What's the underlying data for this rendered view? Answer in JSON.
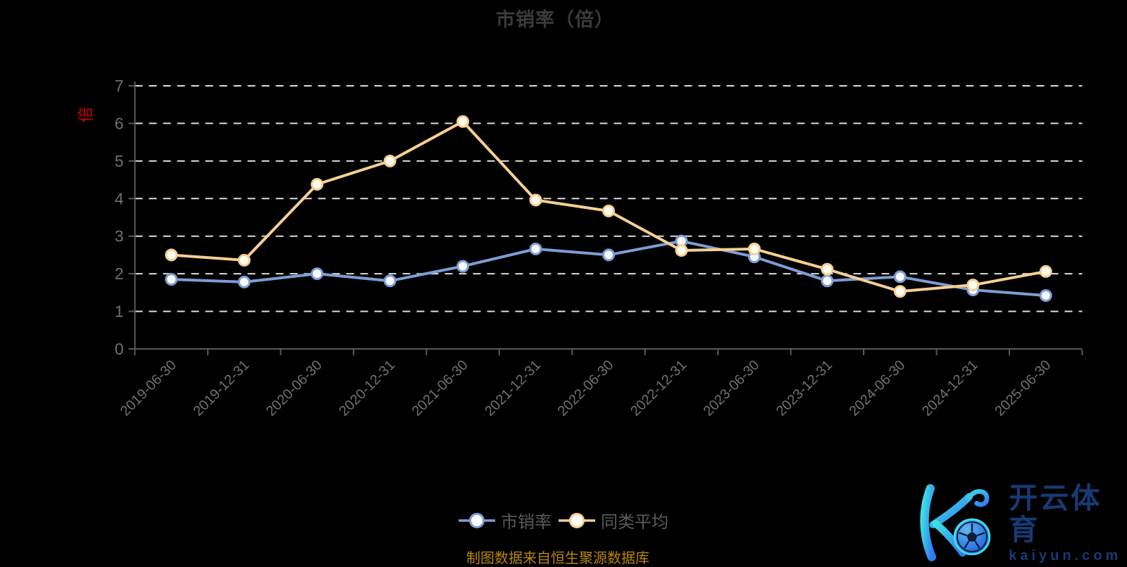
{
  "title": "市销率（倍）",
  "y_axis_unit": "倍",
  "source_note": "制图数据来自恒生聚源数据库",
  "legend": {
    "items": [
      {
        "label": "市销率",
        "color": "#7d9dd4"
      },
      {
        "label": "同类平均",
        "color": "#f5d092"
      }
    ]
  },
  "watermark": {
    "brand_cn": "开云体育",
    "brand_domain": "kaiyun.com"
  },
  "colors": {
    "background": "#000000",
    "title_text": "#3b3b3b",
    "axis_line": "#5a5a5a",
    "axis_text": "#707070",
    "gridline": "#dcdcdc",
    "unit_label_red": "#c40000",
    "source_gold": "#b8860b",
    "brand_navy": "#173a74",
    "brand_gradient": [
      "#3fe0e6",
      "#2f7bf0"
    ],
    "series_blue": "#7d9dd4",
    "series_yellow": "#f5d092"
  },
  "chart_data": {
    "type": "line",
    "title": "市销率（倍）",
    "xlabel": "",
    "ylabel": "倍",
    "ylim": [
      0,
      7
    ],
    "yticks": [
      0,
      1,
      2,
      3,
      4,
      5,
      6,
      7
    ],
    "grid": true,
    "grid_style": "dashed",
    "legend_position": "bottom",
    "x_label_rotate": 45,
    "categories": [
      "2019-06-30",
      "2019-12-31",
      "2020-06-30",
      "2020-12-31",
      "2021-06-30",
      "2021-12-31",
      "2022-06-30",
      "2022-12-31",
      "2023-06-30",
      "2023-12-31",
      "2024-06-30",
      "2024-12-31",
      "2025-06-30"
    ],
    "series": [
      {
        "name": "市销率",
        "color": "#7d9dd4",
        "marker_fill": "#f7faff",
        "values": [
          1.85,
          1.78,
          2.0,
          1.81,
          2.2,
          2.66,
          2.5,
          2.87,
          2.45,
          1.81,
          1.92,
          1.57,
          1.42
        ]
      },
      {
        "name": "同类平均",
        "color": "#f5d092",
        "marker_fill": "#fffdf3",
        "values": [
          2.5,
          2.36,
          4.38,
          5.0,
          6.05,
          3.96,
          3.67,
          2.62,
          2.66,
          2.12,
          1.53,
          1.7,
          2.06
        ]
      }
    ]
  }
}
